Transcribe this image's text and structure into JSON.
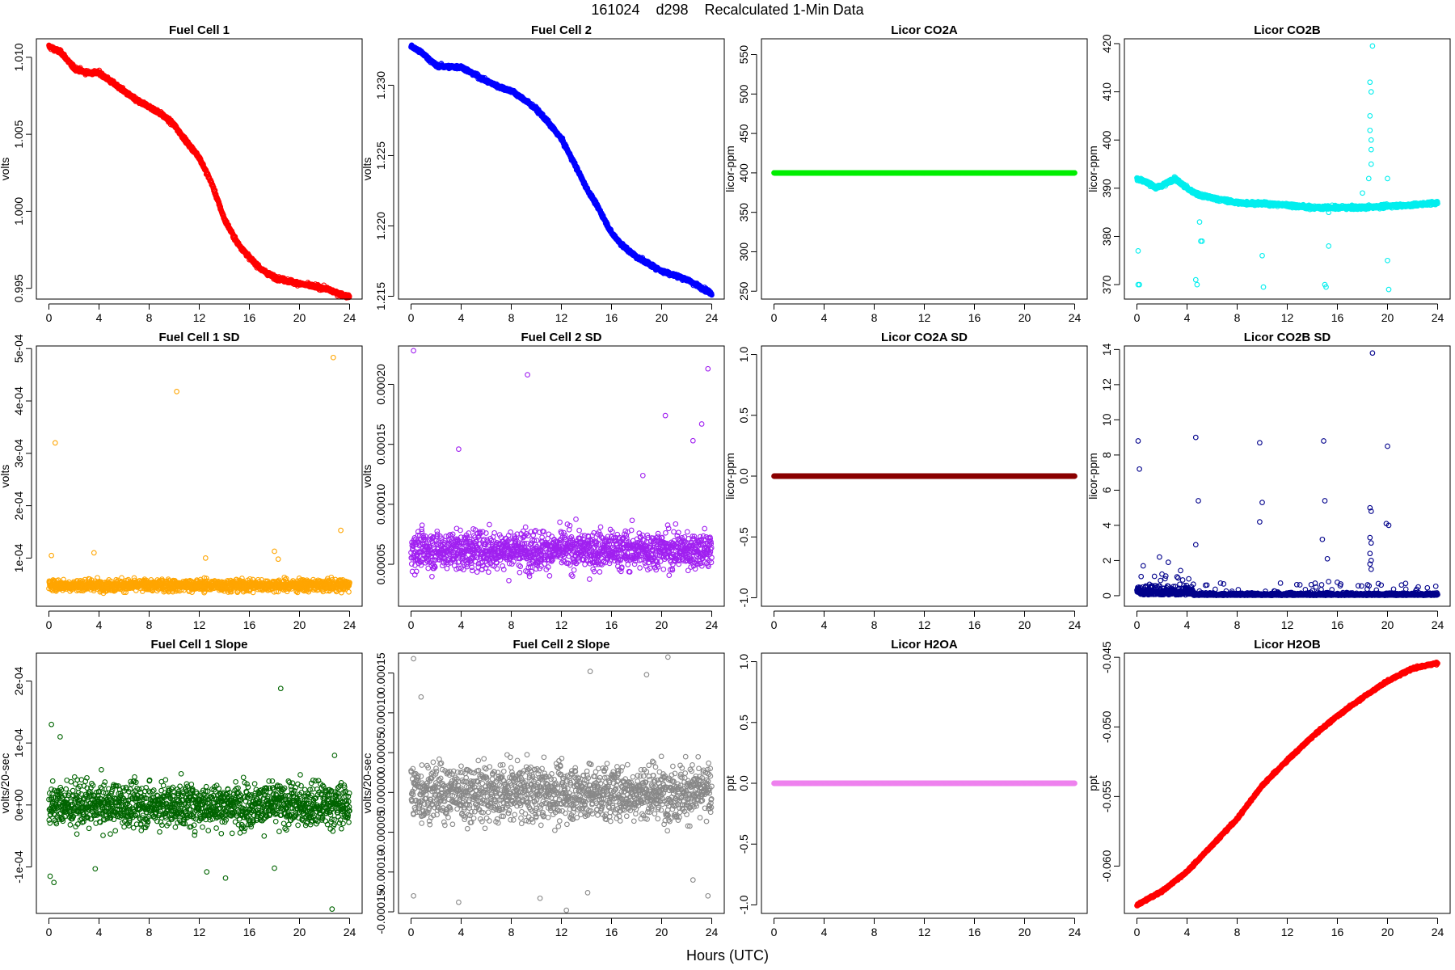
{
  "figure": {
    "title": "161024    d298    Recalculated 1-Min Data",
    "xlabel": "Hours (UTC)"
  },
  "chart_data": [
    {
      "type": "scatter",
      "title": "Fuel Cell 1",
      "ylabel": "volts",
      "color": "#ff0000",
      "xlim": [
        -1,
        25
      ],
      "xticks": [
        0,
        4,
        8,
        12,
        16,
        20,
        24
      ],
      "ylim": [
        0.9943,
        1.0112
      ],
      "yticks": [
        0.995,
        1.0,
        1.005,
        1.01
      ],
      "ytick_labels": [
        "0.995",
        "1.000",
        "1.005",
        "1.010"
      ],
      "pattern": "curve",
      "noise": 0.00012,
      "curve": [
        [
          0,
          1.0107
        ],
        [
          1,
          1.0103
        ],
        [
          2,
          1.0093
        ],
        [
          3,
          1.009
        ],
        [
          4,
          1.009
        ],
        [
          5,
          1.0084
        ],
        [
          6,
          1.0078
        ],
        [
          7,
          1.0072
        ],
        [
          8,
          1.0068
        ],
        [
          9,
          1.0063
        ],
        [
          10,
          1.0056
        ],
        [
          11,
          1.0045
        ],
        [
          12,
          1.0035
        ],
        [
          13,
          1.0018
        ],
        [
          14,
          0.9995
        ],
        [
          15,
          0.998
        ],
        [
          16,
          0.997
        ],
        [
          17,
          0.9962
        ],
        [
          18,
          0.9957
        ],
        [
          20,
          0.9953
        ],
        [
          22,
          0.995
        ],
        [
          23,
          0.9947
        ],
        [
          24,
          0.9944
        ]
      ],
      "extra_points": []
    },
    {
      "type": "scatter",
      "title": "Fuel Cell 2",
      "ylabel": "volts",
      "color": "#0000ff",
      "xlim": [
        -1,
        25
      ],
      "xticks": [
        0,
        4,
        8,
        12,
        16,
        20,
        24
      ],
      "ylim": [
        1.2148,
        1.2333
      ],
      "yticks": [
        1.215,
        1.22,
        1.225,
        1.23
      ],
      "ytick_labels": [
        "1.215",
        "1.220",
        "1.225",
        "1.230"
      ],
      "pattern": "curve",
      "noise": 0.00012,
      "curve": [
        [
          0,
          1.2328
        ],
        [
          1,
          1.2322
        ],
        [
          2,
          1.2314
        ],
        [
          3,
          1.2313
        ],
        [
          4,
          1.2313
        ],
        [
          5,
          1.2308
        ],
        [
          6,
          1.2303
        ],
        [
          7,
          1.2299
        ],
        [
          8,
          1.2296
        ],
        [
          9,
          1.229
        ],
        [
          10,
          1.2283
        ],
        [
          11,
          1.2273
        ],
        [
          12,
          1.2262
        ],
        [
          13,
          1.2245
        ],
        [
          14,
          1.2227
        ],
        [
          15,
          1.2212
        ],
        [
          16,
          1.2195
        ],
        [
          17,
          1.2185
        ],
        [
          18,
          1.2178
        ],
        [
          20,
          1.2168
        ],
        [
          22,
          1.2162
        ],
        [
          23,
          1.2157
        ],
        [
          24,
          1.2152
        ]
      ],
      "extra_points": []
    },
    {
      "type": "scatter",
      "title": "Licor CO2A",
      "ylabel": "licor-ppm",
      "color": "#00ee00",
      "xlim": [
        -1,
        25
      ],
      "xticks": [
        0,
        4,
        8,
        12,
        16,
        20,
        24
      ],
      "ylim": [
        240,
        570
      ],
      "yticks": [
        250,
        300,
        350,
        400,
        450,
        500,
        550
      ],
      "ytick_labels": [
        "250",
        "300",
        "350",
        "400",
        "450",
        "500",
        "550"
      ],
      "pattern": "constant",
      "value": 400
    },
    {
      "type": "scatter",
      "title": "Licor CO2B",
      "ylabel": "licor-ppm",
      "color": "#00eeee",
      "xlim": [
        -1,
        25
      ],
      "xticks": [
        0,
        4,
        8,
        12,
        16,
        20,
        24
      ],
      "ylim": [
        367,
        421
      ],
      "yticks": [
        370,
        380,
        390,
        400,
        410,
        420
      ],
      "ytick_labels": [
        "370",
        "380",
        "390",
        "400",
        "410",
        "420"
      ],
      "pattern": "curve",
      "noise": 0.35,
      "curve": [
        [
          0,
          392
        ],
        [
          1,
          391
        ],
        [
          1.5,
          390
        ],
        [
          2,
          390.5
        ],
        [
          3,
          392
        ],
        [
          4,
          390
        ],
        [
          5,
          388.5
        ],
        [
          6,
          388
        ],
        [
          8,
          387
        ],
        [
          10,
          386.8
        ],
        [
          12,
          386.5
        ],
        [
          14,
          386
        ],
        [
          16,
          386
        ],
        [
          18,
          386
        ],
        [
          20,
          386.3
        ],
        [
          22,
          386.5
        ],
        [
          24,
          387
        ]
      ],
      "extra_points": [
        [
          0.1,
          377
        ],
        [
          0.1,
          370
        ],
        [
          0.2,
          370
        ],
        [
          4.7,
          371
        ],
        [
          4.8,
          370
        ],
        [
          5,
          383
        ],
        [
          5.1,
          379
        ],
        [
          5.2,
          379
        ],
        [
          10,
          376
        ],
        [
          10.1,
          369.5
        ],
        [
          15,
          370
        ],
        [
          15.1,
          369.5
        ],
        [
          15.3,
          378
        ],
        [
          15.3,
          385
        ],
        [
          18.6,
          412
        ],
        [
          18.7,
          410
        ],
        [
          18.6,
          405
        ],
        [
          18.6,
          402
        ],
        [
          18.7,
          400
        ],
        [
          18.7,
          398
        ],
        [
          18.7,
          395
        ],
        [
          18.8,
          419.5
        ],
        [
          20,
          375
        ],
        [
          20.1,
          369
        ],
        [
          20,
          392
        ],
        [
          18,
          389
        ],
        [
          18.5,
          392
        ]
      ]
    },
    {
      "type": "scatter",
      "title": "Fuel Cell 1 SD",
      "ylabel": "volts",
      "color": "#ffa500",
      "xlim": [
        -1,
        25
      ],
      "xticks": [
        0,
        4,
        8,
        12,
        16,
        20,
        24
      ],
      "ylim": [
        8e-06,
        0.000505
      ],
      "yticks": [
        0.0001,
        0.0002,
        0.0003,
        0.0004,
        0.0005
      ],
      "ytick_labels": [
        "1e-04",
        "2e-04",
        "3e-04",
        "4e-04",
        "5e-04"
      ],
      "pattern": "band",
      "center": 4.8e-05,
      "spread": 1.1e-05,
      "extra_points": [
        [
          0.5,
          0.00032
        ],
        [
          10.2,
          0.000418
        ],
        [
          22.7,
          0.000483
        ],
        [
          23.3,
          0.000153
        ],
        [
          0.2,
          0.000105
        ],
        [
          3.6,
          0.00011
        ],
        [
          18,
          0.000113
        ],
        [
          18.3,
          9.8e-05
        ],
        [
          12.5,
          0.0001
        ]
      ]
    },
    {
      "type": "scatter",
      "title": "Fuel Cell 2 SD",
      "ylabel": "volts",
      "color": "#a020f0",
      "xlim": [
        -1,
        25
      ],
      "xticks": [
        0,
        4,
        8,
        12,
        16,
        20,
        24
      ],
      "ylim": [
        1.5e-05,
        0.000232
      ],
      "yticks": [
        5e-05,
        0.0001,
        0.00015,
        0.0002
      ],
      "ytick_labels": [
        "0.00005",
        "0.00010",
        "0.00015",
        "0.00020"
      ],
      "pattern": "band",
      "center": 6.2e-05,
      "spread": 1.6e-05,
      "extra_points": [
        [
          0.2,
          0.000228
        ],
        [
          9.3,
          0.000208
        ],
        [
          23.7,
          0.000213
        ],
        [
          20.3,
          0.000174
        ],
        [
          23.2,
          0.000167
        ],
        [
          3.8,
          0.000146
        ],
        [
          22.5,
          0.000153
        ],
        [
          18.5,
          0.000124
        ]
      ]
    },
    {
      "type": "scatter",
      "title": "Licor CO2A SD",
      "ylabel": "licor-ppm",
      "color": "#8b0000",
      "xlim": [
        -1,
        25
      ],
      "xticks": [
        0,
        4,
        8,
        12,
        16,
        20,
        24
      ],
      "ylim": [
        -1.07,
        1.07
      ],
      "yticks": [
        -1,
        -0.5,
        0,
        0.5,
        1
      ],
      "ytick_labels": [
        "-1.0",
        "-0.5",
        "0.0",
        "0.5",
        "1.0"
      ],
      "pattern": "constant",
      "value": 0
    },
    {
      "type": "scatter",
      "title": "Licor CO2B SD",
      "ylabel": "licor-ppm",
      "color": "#00008b",
      "xlim": [
        -1,
        25
      ],
      "xticks": [
        0,
        4,
        8,
        12,
        16,
        20,
        24
      ],
      "ylim": [
        -0.6,
        14.2
      ],
      "yticks": [
        0,
        2,
        4,
        6,
        8,
        10,
        12,
        14
      ],
      "ytick_labels": [
        "0",
        "2",
        "4",
        "6",
        "8",
        "10",
        "12",
        "14"
      ],
      "pattern": "co2bsd",
      "extra_points": [
        [
          0.1,
          8.8
        ],
        [
          0.2,
          7.2
        ],
        [
          4.7,
          9
        ],
        [
          4.9,
          5.4
        ],
        [
          4.7,
          2.9
        ],
        [
          9.8,
          8.7
        ],
        [
          10,
          5.3
        ],
        [
          9.8,
          4.2
        ],
        [
          14.9,
          8.8
        ],
        [
          15,
          5.4
        ],
        [
          14.8,
          3.2
        ],
        [
          15.2,
          2.1
        ],
        [
          18.8,
          13.8
        ],
        [
          18.6,
          5
        ],
        [
          18.7,
          4.8
        ],
        [
          18.6,
          3.3
        ],
        [
          18.7,
          3
        ],
        [
          18.6,
          2.4
        ],
        [
          18.7,
          2
        ],
        [
          18.6,
          1.8
        ],
        [
          18.7,
          1.5
        ],
        [
          20,
          8.5
        ],
        [
          19.9,
          4.1
        ],
        [
          20.1,
          4
        ],
        [
          1.8,
          2.2
        ],
        [
          2.5,
          1.9
        ],
        [
          0.5,
          1.7
        ]
      ]
    },
    {
      "type": "scatter",
      "title": "Fuel Cell 1 Slope",
      "ylabel": "volts/20-sec",
      "color": "#006400",
      "xlim": [
        -1,
        25
      ],
      "xticks": [
        0,
        4,
        8,
        12,
        16,
        20,
        24
      ],
      "ylim": [
        -0.000175,
        0.000245
      ],
      "yticks": [
        -0.0001,
        0,
        0.0001,
        0.0002
      ],
      "ytick_labels": [
        "-1e-04",
        "0e+00",
        "1e-04",
        "2e-04"
      ],
      "pattern": "band",
      "center": 0,
      "spread": 3.5e-05,
      "extra_points": [
        [
          10.1,
          0.000245
        ],
        [
          18.5,
          0.000188
        ],
        [
          0.2,
          0.00013
        ],
        [
          0.9,
          0.00011
        ],
        [
          0.1,
          -0.000115
        ],
        [
          0.4,
          -0.000125
        ],
        [
          3.7,
          -0.000103
        ],
        [
          12.6,
          -0.000108
        ],
        [
          14.1,
          -0.000118
        ],
        [
          22.6,
          -0.000168
        ],
        [
          18,
          -0.000102
        ],
        [
          22.8,
          8e-05
        ]
      ]
    },
    {
      "type": "scatter",
      "title": "Fuel Cell 2 Slope",
      "ylabel": "volts/20-sec",
      "color": "#888888",
      "xlim": [
        -1,
        25
      ],
      "xticks": [
        0,
        4,
        8,
        12,
        16,
        20,
        24
      ],
      "ylim": [
        -0.000152,
        0.000175
      ],
      "yticks": [
        -0.00015,
        -0.0001,
        -5e-05,
        0,
        5e-05,
        0.0001,
        0.00015
      ],
      "ytick_labels": [
        "-0.00015",
        "-0.00010",
        "-0.00005",
        "0.00000",
        "0.00005",
        "0.00010",
        "0.00015"
      ],
      "pattern": "band",
      "center": 0,
      "spread": 3.5e-05,
      "extra_points": [
        [
          0.2,
          0.000168
        ],
        [
          20.5,
          0.00017
        ],
        [
          14.3,
          0.000152
        ],
        [
          18.8,
          0.000148
        ],
        [
          0.2,
          -0.00013
        ],
        [
          3.8,
          -0.000138
        ],
        [
          10.3,
          -0.000133
        ],
        [
          12.4,
          -0.000148
        ],
        [
          14.1,
          -0.000126
        ],
        [
          23.7,
          -0.00013
        ],
        [
          0.8,
          0.00012
        ],
        [
          22.5,
          -0.00011
        ]
      ]
    },
    {
      "type": "scatter",
      "title": "Licor H2OA",
      "ylabel": "ppt",
      "color": "#ee82ee",
      "xlim": [
        -1,
        25
      ],
      "xticks": [
        0,
        4,
        8,
        12,
        16,
        20,
        24
      ],
      "ylim": [
        -1.07,
        1.07
      ],
      "yticks": [
        -1,
        -0.5,
        0,
        0.5,
        1
      ],
      "ytick_labels": [
        "-1.0",
        "-0.5",
        "0.0",
        "0.5",
        "1.0"
      ],
      "pattern": "constant",
      "value": 0
    },
    {
      "type": "scatter",
      "title": "Licor H2OB",
      "ylabel": "ppt",
      "color": "#ff0000",
      "xlim": [
        -1,
        25
      ],
      "xticks": [
        0,
        4,
        8,
        12,
        16,
        20,
        24
      ],
      "ylim": [
        -0.0634,
        -0.0447
      ],
      "yticks": [
        -0.06,
        -0.055,
        -0.05,
        -0.045
      ],
      "ytick_labels": [
        "-0.060",
        "-0.055",
        "-0.050",
        "-0.045"
      ],
      "pattern": "curve",
      "noise": 8e-05,
      "curve": [
        [
          0,
          -0.0628
        ],
        [
          2,
          -0.0618
        ],
        [
          4,
          -0.0604
        ],
        [
          6,
          -0.0585
        ],
        [
          8,
          -0.0566
        ],
        [
          10,
          -0.0542
        ],
        [
          12,
          -0.0524
        ],
        [
          14,
          -0.0507
        ],
        [
          16,
          -0.0492
        ],
        [
          18,
          -0.0479
        ],
        [
          20,
          -0.0467
        ],
        [
          22,
          -0.0458
        ],
        [
          24,
          -0.0454
        ]
      ],
      "extra_points": []
    }
  ]
}
